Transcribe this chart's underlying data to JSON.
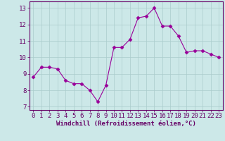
{
  "x": [
    0,
    1,
    2,
    3,
    4,
    5,
    6,
    7,
    8,
    9,
    10,
    11,
    12,
    13,
    14,
    15,
    16,
    17,
    18,
    19,
    20,
    21,
    22,
    23
  ],
  "y": [
    8.8,
    9.4,
    9.4,
    9.3,
    8.6,
    8.4,
    8.4,
    8.0,
    7.3,
    8.3,
    10.6,
    10.6,
    11.1,
    12.4,
    12.5,
    13.0,
    11.9,
    11.9,
    11.3,
    10.3,
    10.4,
    10.4,
    10.2,
    10.0
  ],
  "line_color": "#990099",
  "marker": "D",
  "marker_size": 2.5,
  "bg_color": "#cce8e8",
  "grid_color": "#aacccc",
  "xlabel": "Windchill (Refroidissement éolien,°C)",
  "xlabel_color": "#660066",
  "tick_color": "#660066",
  "ylim": [
    6.8,
    13.4
  ],
  "yticks": [
    7,
    8,
    9,
    10,
    11,
    12,
    13
  ],
  "xlim": [
    -0.5,
    23.5
  ],
  "xticks": [
    0,
    1,
    2,
    3,
    4,
    5,
    6,
    7,
    8,
    9,
    10,
    11,
    12,
    13,
    14,
    15,
    16,
    17,
    18,
    19,
    20,
    21,
    22,
    23
  ],
  "spine_color": "#660066",
  "label_fontsize": 6.5,
  "tick_fontsize": 6.5
}
